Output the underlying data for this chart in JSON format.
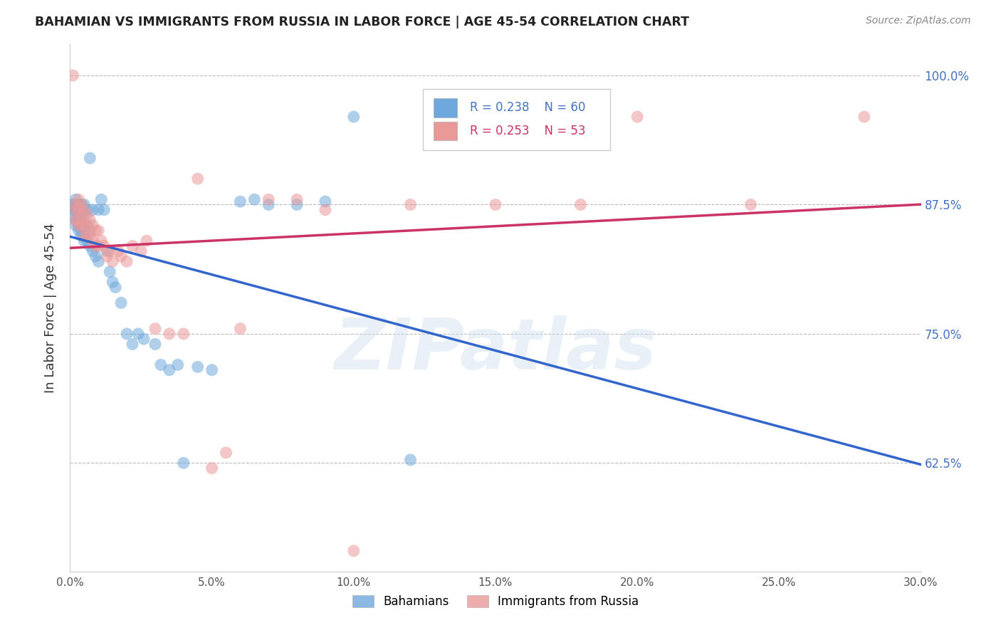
{
  "title": "BAHAMIAN VS IMMIGRANTS FROM RUSSIA IN LABOR FORCE | AGE 45-54 CORRELATION CHART",
  "source_text": "Source: ZipAtlas.com",
  "ylabel": "In Labor Force | Age 45-54",
  "xlim": [
    0.0,
    0.3
  ],
  "ylim": [
    0.52,
    1.03
  ],
  "xticks": [
    0.0,
    0.05,
    0.1,
    0.15,
    0.2,
    0.25,
    0.3
  ],
  "xticklabels": [
    "0.0%",
    "5.0%",
    "10.0%",
    "15.0%",
    "20.0%",
    "25.0%",
    "30.0%"
  ],
  "yticks": [
    0.625,
    0.75,
    0.875,
    1.0
  ],
  "yticklabels": [
    "62.5%",
    "75.0%",
    "87.5%",
    "100.0%"
  ],
  "blue_color": "#6fa8dc",
  "pink_color": "#ea9999",
  "blue_line_color": "#3366cc",
  "pink_line_color": "#cc3366",
  "legend_blue_R": "0.238",
  "legend_blue_N": "60",
  "legend_pink_R": "0.253",
  "legend_pink_N": "53",
  "watermark": "ZIPatlas",
  "blue_scatter_x": [
    0.001,
    0.001,
    0.001,
    0.002,
    0.002,
    0.002,
    0.002,
    0.002,
    0.003,
    0.003,
    0.003,
    0.003,
    0.003,
    0.003,
    0.004,
    0.004,
    0.004,
    0.004,
    0.004,
    0.005,
    0.005,
    0.005,
    0.005,
    0.005,
    0.006,
    0.006,
    0.006,
    0.007,
    0.007,
    0.007,
    0.008,
    0.008,
    0.009,
    0.01,
    0.01,
    0.011,
    0.012,
    0.013,
    0.014,
    0.015,
    0.016,
    0.018,
    0.02,
    0.022,
    0.024,
    0.026,
    0.03,
    0.032,
    0.035,
    0.038,
    0.04,
    0.045,
    0.05,
    0.06,
    0.065,
    0.07,
    0.08,
    0.09,
    0.1,
    0.12
  ],
  "blue_scatter_y": [
    0.875,
    0.87,
    0.865,
    0.875,
    0.88,
    0.87,
    0.86,
    0.855,
    0.875,
    0.865,
    0.87,
    0.86,
    0.855,
    0.85,
    0.875,
    0.865,
    0.855,
    0.85,
    0.845,
    0.875,
    0.865,
    0.855,
    0.845,
    0.84,
    0.87,
    0.855,
    0.84,
    0.92,
    0.85,
    0.835,
    0.87,
    0.83,
    0.825,
    0.87,
    0.82,
    0.88,
    0.87,
    0.83,
    0.81,
    0.8,
    0.795,
    0.78,
    0.75,
    0.74,
    0.75,
    0.745,
    0.74,
    0.72,
    0.715,
    0.72,
    0.625,
    0.718,
    0.715,
    0.878,
    0.88,
    0.875,
    0.875,
    0.878,
    0.96,
    0.628
  ],
  "pink_scatter_x": [
    0.001,
    0.002,
    0.002,
    0.002,
    0.003,
    0.003,
    0.003,
    0.003,
    0.004,
    0.004,
    0.004,
    0.005,
    0.005,
    0.005,
    0.006,
    0.006,
    0.006,
    0.007,
    0.007,
    0.008,
    0.008,
    0.009,
    0.009,
    0.01,
    0.01,
    0.011,
    0.012,
    0.013,
    0.014,
    0.015,
    0.017,
    0.018,
    0.02,
    0.022,
    0.025,
    0.027,
    0.03,
    0.035,
    0.04,
    0.045,
    0.05,
    0.055,
    0.06,
    0.07,
    0.08,
    0.09,
    0.1,
    0.12,
    0.15,
    0.18,
    0.2,
    0.24,
    0.28
  ],
  "pink_scatter_y": [
    1.0,
    0.875,
    0.87,
    0.86,
    0.88,
    0.87,
    0.86,
    0.855,
    0.875,
    0.865,
    0.855,
    0.87,
    0.855,
    0.845,
    0.865,
    0.855,
    0.845,
    0.86,
    0.845,
    0.855,
    0.84,
    0.85,
    0.835,
    0.85,
    0.835,
    0.84,
    0.835,
    0.825,
    0.83,
    0.82,
    0.83,
    0.825,
    0.82,
    0.835,
    0.83,
    0.84,
    0.755,
    0.75,
    0.75,
    0.9,
    0.62,
    0.635,
    0.755,
    0.88,
    0.88,
    0.87,
    0.54,
    0.875,
    0.875,
    0.875,
    0.96,
    0.875,
    0.96
  ]
}
